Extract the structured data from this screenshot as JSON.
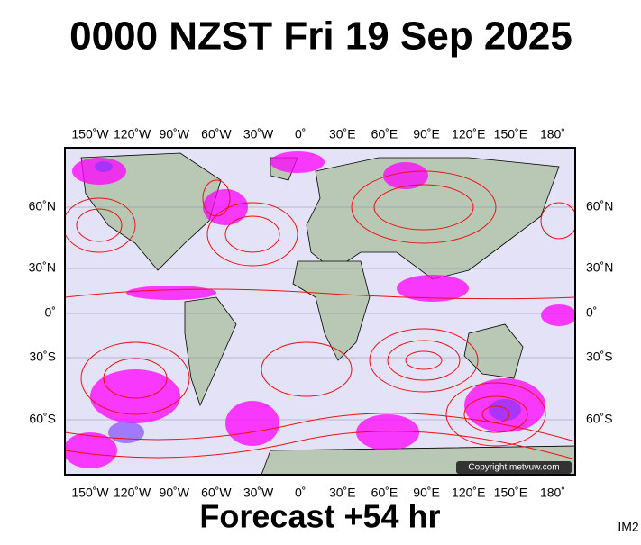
{
  "header": {
    "title": "0000 NZST Fri 19 Sep 2025"
  },
  "map": {
    "longitude_labels": [
      "150˚W",
      "120˚W",
      "90˚W",
      "60˚W",
      "30˚W",
      "0˚",
      "30˚E",
      "60˚E",
      "90˚E",
      "120˚E",
      "150˚E",
      "180˚"
    ],
    "latitude_labels": [
      "60˚N",
      "30˚N",
      "0˚",
      "30˚S",
      "60˚S"
    ],
    "copyright": "Copyright metvuw.com"
  },
  "footer": {
    "forecast": "Forecast +54 hr",
    "code": "IM2"
  }
}
